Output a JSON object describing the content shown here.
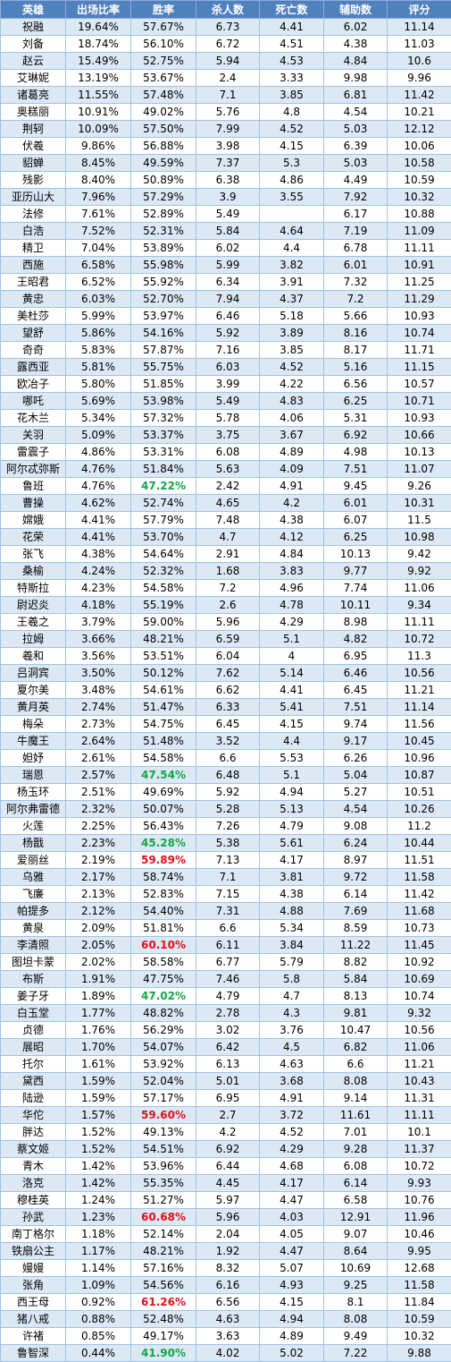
{
  "table": {
    "headers": [
      "英雄",
      "出场比率",
      "胜率",
      "杀人数",
      "死亡数",
      "辅助数",
      "评分"
    ],
    "rows": [
      [
        "祝融",
        "19.64%",
        "57.67%",
        "6.73",
        "4.41",
        "6.02",
        "11.14"
      ],
      [
        "刘备",
        "18.74%",
        "56.10%",
        "6.72",
        "4.51",
        "4.38",
        "11.03"
      ],
      [
        "赵云",
        "15.49%",
        "52.75%",
        "5.94",
        "4.53",
        "4.84",
        "10.6"
      ],
      [
        "艾琳妮",
        "13.19%",
        "53.67%",
        "2.4",
        "3.33",
        "9.98",
        "9.96"
      ],
      [
        "诸葛亮",
        "11.55%",
        "57.48%",
        "7.1",
        "3.85",
        "6.81",
        "11.42"
      ],
      [
        "奥糕丽",
        "10.91%",
        "49.02%",
        "5.76",
        "4.8",
        "4.54",
        "10.21"
      ],
      [
        "荆轲",
        "10.09%",
        "57.50%",
        "7.99",
        "4.52",
        "5.03",
        "12.12"
      ],
      [
        "伏羲",
        "9.86%",
        "56.88%",
        "3.98",
        "4.15",
        "6.39",
        "10.06"
      ],
      [
        "貂蝉",
        "8.45%",
        "49.59%",
        "7.37",
        "5.3",
        "5.03",
        "10.58"
      ],
      [
        "残影",
        "8.40%",
        "50.89%",
        "6.38",
        "4.86",
        "4.49",
        "10.59"
      ],
      [
        "亚历山大",
        "7.96%",
        "57.29%",
        "3.9",
        "3.55",
        "7.92",
        "10.32"
      ],
      [
        "法修",
        "7.61%",
        "52.89%",
        "5.49",
        "",
        "6.17",
        "10.88"
      ],
      [
        "白浩",
        "7.52%",
        "52.31%",
        "5.84",
        "4.64",
        "7.19",
        "11.09"
      ],
      [
        "精卫",
        "7.04%",
        "53.89%",
        "6.02",
        "4.4",
        "6.78",
        "11.11"
      ],
      [
        "西施",
        "6.58%",
        "55.98%",
        "5.99",
        "3.82",
        "6.01",
        "10.91"
      ],
      [
        "王昭君",
        "6.52%",
        "55.92%",
        "6.34",
        "3.91",
        "7.32",
        "11.25"
      ],
      [
        "黄忠",
        "6.03%",
        "52.70%",
        "7.94",
        "4.37",
        "7.2",
        "11.29"
      ],
      [
        "美杜莎",
        "5.99%",
        "53.97%",
        "6.46",
        "5.18",
        "5.66",
        "10.93"
      ],
      [
        "望舒",
        "5.86%",
        "54.16%",
        "5.92",
        "3.89",
        "8.16",
        "10.74"
      ],
      [
        "奇奇",
        "5.83%",
        "57.87%",
        "7.16",
        "3.85",
        "8.17",
        "11.71"
      ],
      [
        "露西亚",
        "5.81%",
        "55.75%",
        "6.03",
        "4.52",
        "5.16",
        "11.15"
      ],
      [
        "欧冶子",
        "5.80%",
        "51.85%",
        "3.99",
        "4.22",
        "6.56",
        "10.57"
      ],
      [
        "哪吒",
        "5.69%",
        "53.98%",
        "5.49",
        "4.83",
        "6.25",
        "10.71"
      ],
      [
        "花木兰",
        "5.34%",
        "57.32%",
        "5.78",
        "4.06",
        "5.31",
        "10.93"
      ],
      [
        "关羽",
        "5.09%",
        "53.37%",
        "3.75",
        "3.67",
        "6.92",
        "10.66"
      ],
      [
        "雷震子",
        "4.86%",
        "53.31%",
        "6.08",
        "4.89",
        "4.98",
        "10.13"
      ],
      [
        "阿尔忒弥斯",
        "4.76%",
        "51.84%",
        "5.63",
        "4.09",
        "7.51",
        "11.07"
      ],
      [
        "鲁班",
        "4.76%",
        "47.22%",
        "2.42",
        "4.91",
        "9.45",
        "9.26"
      ],
      [
        "曹操",
        "4.62%",
        "52.74%",
        "4.65",
        "4.2",
        "6.01",
        "10.31"
      ],
      [
        "嫦娥",
        "4.41%",
        "57.79%",
        "7.48",
        "4.38",
        "6.07",
        "11.5"
      ],
      [
        "花荣",
        "4.41%",
        "53.70%",
        "4.7",
        "4.12",
        "6.25",
        "10.98"
      ],
      [
        "张飞",
        "4.38%",
        "54.64%",
        "2.91",
        "4.84",
        "10.13",
        "9.42"
      ],
      [
        "桑榆",
        "4.24%",
        "52.32%",
        "1.68",
        "3.83",
        "9.77",
        "9.92"
      ],
      [
        "特斯拉",
        "4.23%",
        "54.58%",
        "7.2",
        "4.96",
        "7.74",
        "11.06"
      ],
      [
        "尉迟炎",
        "4.18%",
        "55.19%",
        "2.6",
        "4.78",
        "10.11",
        "9.34"
      ],
      [
        "王羲之",
        "3.79%",
        "59.00%",
        "5.96",
        "4.29",
        "8.98",
        "11.11"
      ],
      [
        "拉姆",
        "3.66%",
        "48.21%",
        "6.59",
        "5.1",
        "4.82",
        "10.72"
      ],
      [
        "羲和",
        "3.56%",
        "53.51%",
        "6.04",
        "4",
        "6.95",
        "11.3"
      ],
      [
        "吕洞宾",
        "3.50%",
        "50.12%",
        "7.62",
        "5.14",
        "6.46",
        "10.56"
      ],
      [
        "夏尔美",
        "3.48%",
        "54.61%",
        "6.62",
        "4.41",
        "6.45",
        "11.21"
      ],
      [
        "黄月英",
        "2.74%",
        "51.47%",
        "6.33",
        "5.41",
        "7.51",
        "11.14"
      ],
      [
        "梅朵",
        "2.73%",
        "54.75%",
        "6.45",
        "4.15",
        "9.74",
        "11.56"
      ],
      [
        "牛魔王",
        "2.64%",
        "51.48%",
        "3.52",
        "4.4",
        "9.17",
        "10.45"
      ],
      [
        "妲妤",
        "2.61%",
        "54.58%",
        "6.6",
        "5.53",
        "6.26",
        "10.96"
      ],
      [
        "瑞恩",
        "2.57%",
        "47.54%",
        "6.48",
        "5.1",
        "5.04",
        "10.87"
      ],
      [
        "杨玉环",
        "2.51%",
        "49.69%",
        "5.92",
        "4.94",
        "5.27",
        "10.51"
      ],
      [
        "阿尔弗雷德",
        "2.32%",
        "50.07%",
        "5.28",
        "5.13",
        "4.54",
        "10.26"
      ],
      [
        "火莲",
        "2.25%",
        "56.43%",
        "7.26",
        "4.79",
        "9.08",
        "11.2"
      ],
      [
        "杨戬",
        "2.23%",
        "45.28%",
        "5.38",
        "5.61",
        "6.24",
        "10.44"
      ],
      [
        "爱丽丝",
        "2.19%",
        "59.89%",
        "7.13",
        "4.17",
        "8.97",
        "11.51"
      ],
      [
        "乌雅",
        "2.17%",
        "58.74%",
        "7.1",
        "3.81",
        "9.72",
        "11.58"
      ],
      [
        "飞廉",
        "2.13%",
        "52.83%",
        "7.15",
        "4.38",
        "6.14",
        "11.42"
      ],
      [
        "帕提多",
        "2.12%",
        "54.40%",
        "7.31",
        "4.88",
        "7.69",
        "11.68"
      ],
      [
        "黄泉",
        "2.09%",
        "51.81%",
        "6.6",
        "5.34",
        "8.59",
        "10.73"
      ],
      [
        "李清照",
        "2.05%",
        "60.10%",
        "6.11",
        "3.84",
        "11.22",
        "11.45"
      ],
      [
        "图坦卡蒙",
        "2.02%",
        "58.58%",
        "6.77",
        "5.79",
        "8.82",
        "10.92"
      ],
      [
        "布斯",
        "1.91%",
        "47.75%",
        "7.46",
        "5.8",
        "5.84",
        "10.69"
      ],
      [
        "姜子牙",
        "1.89%",
        "47.02%",
        "4.79",
        "4.7",
        "8.13",
        "10.74"
      ],
      [
        "白玉堂",
        "1.77%",
        "48.82%",
        "2.78",
        "4.3",
        "9.81",
        "9.32"
      ],
      [
        "贞德",
        "1.76%",
        "56.29%",
        "3.02",
        "3.76",
        "10.47",
        "10.56"
      ],
      [
        "展昭",
        "1.70%",
        "54.07%",
        "6.42",
        "4.5",
        "6.82",
        "11.06"
      ],
      [
        "托尔",
        "1.61%",
        "53.92%",
        "6.13",
        "4.63",
        "6.6",
        "11.21"
      ],
      [
        "黛西",
        "1.59%",
        "52.04%",
        "5.01",
        "3.68",
        "8.08",
        "10.43"
      ],
      [
        "陆逊",
        "1.59%",
        "57.17%",
        "6.95",
        "4.91",
        "9.14",
        "11.31"
      ],
      [
        "华佗",
        "1.57%",
        "59.60%",
        "2.7",
        "3.72",
        "11.61",
        "11.11"
      ],
      [
        "胖达",
        "1.52%",
        "49.13%",
        "4.2",
        "4.52",
        "7.01",
        "10.1"
      ],
      [
        "蔡文姬",
        "1.52%",
        "54.51%",
        "6.92",
        "4.29",
        "9.28",
        "11.37"
      ],
      [
        "青木",
        "1.42%",
        "53.96%",
        "6.44",
        "4.68",
        "6.08",
        "10.72"
      ],
      [
        "洛克",
        "1.42%",
        "55.35%",
        "4.45",
        "4.17",
        "6.14",
        "9.93"
      ],
      [
        "穆桂英",
        "1.24%",
        "51.27%",
        "5.97",
        "4.47",
        "6.58",
        "10.76"
      ],
      [
        "孙武",
        "1.23%",
        "60.68%",
        "5.96",
        "4.03",
        "12.91",
        "11.96"
      ],
      [
        "南丁格尔",
        "1.18%",
        "52.14%",
        "2.04",
        "4.05",
        "9.07",
        "10.46"
      ],
      [
        "铁扇公主",
        "1.17%",
        "48.21%",
        "1.92",
        "4.47",
        "8.64",
        "9.95"
      ],
      [
        "嫚嫚",
        "1.14%",
        "57.16%",
        "8.32",
        "5.07",
        "10.69",
        "12.68"
      ],
      [
        "张角",
        "1.09%",
        "54.56%",
        "6.16",
        "4.93",
        "9.25",
        "11.58"
      ],
      [
        "西王母",
        "0.92%",
        "61.26%",
        "6.56",
        "4.15",
        "8.1",
        "11.84"
      ],
      [
        "猪八戒",
        "0.88%",
        "52.48%",
        "4.63",
        "4.94",
        "8.08",
        "10.59"
      ],
      [
        "许褚",
        "0.85%",
        "49.17%",
        "3.63",
        "4.89",
        "9.49",
        "10.32"
      ],
      [
        "鲁智深",
        "0.44%",
        "41.90%",
        "4.02",
        "5.02",
        "7.22",
        "9.88"
      ]
    ],
    "highlight_colors": {
      "red": "#e0101a",
      "green": "#13a54a",
      "header_bg": "#4f81bd",
      "alt_row_bg": "#dde8f5"
    },
    "highlighted_winrate": {
      "鲁班": "green",
      "瑞恩": "green",
      "杨戬": "green",
      "爱丽丝": "red",
      "李清照": "red",
      "姜子牙": "green",
      "华佗": "red",
      "孙武": "red",
      "西王母": "red",
      "鲁智深": "green"
    }
  }
}
